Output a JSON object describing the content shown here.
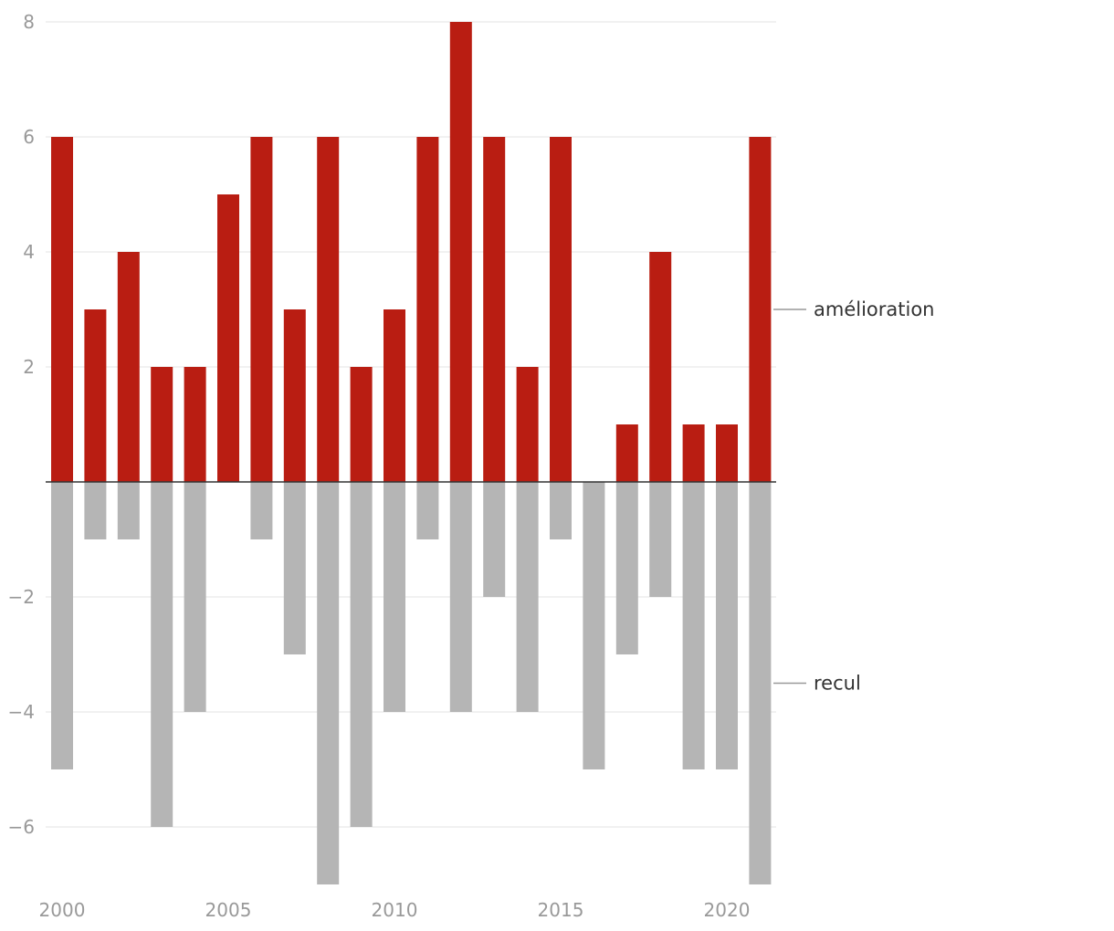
{
  "chart_data": {
    "type": "bar",
    "stacked": "diverging",
    "title": "",
    "xlabel": "",
    "ylabel": "",
    "ylim": [
      -7,
      8
    ],
    "yticks": [
      -6,
      -4,
      -2,
      2,
      4,
      6,
      8
    ],
    "xticks": [
      2000,
      2005,
      2010,
      2015,
      2020
    ],
    "categories": [
      2000,
      2001,
      2002,
      2003,
      2004,
      2005,
      2006,
      2007,
      2008,
      2009,
      2010,
      2011,
      2012,
      2013,
      2014,
      2015,
      2016,
      2017,
      2018,
      2019,
      2020,
      2021
    ],
    "series": [
      {
        "name": "amélioration",
        "color": "#b91d12",
        "values": [
          6,
          3,
          4,
          2,
          2,
          5,
          6,
          3,
          6,
          2,
          3,
          6,
          8,
          6,
          2,
          6,
          0,
          1,
          4,
          1,
          1,
          6
        ]
      },
      {
        "name": "recul",
        "color": "#b5b5b5",
        "values": [
          -5,
          -1,
          -1,
          -6,
          -4,
          0,
          -1,
          -3,
          -7,
          -6,
          -4,
          -1,
          -4,
          -2,
          -4,
          -1,
          -5,
          -3,
          -2,
          -5,
          -5,
          -7
        ]
      }
    ],
    "label_anchor_values": [
      3,
      -3.5
    ],
    "grid": true,
    "legend": "direct labels right"
  }
}
